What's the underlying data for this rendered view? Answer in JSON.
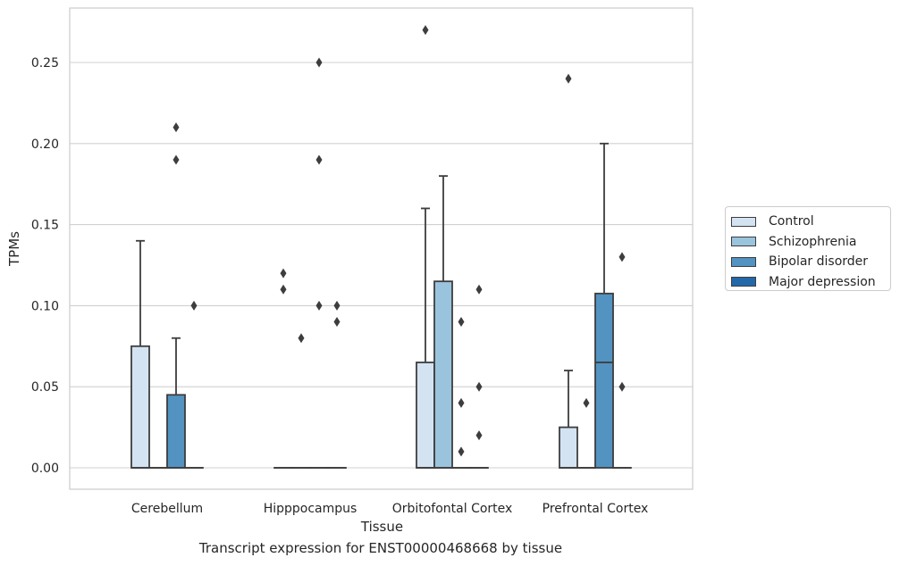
{
  "chart_data": {
    "type": "box",
    "xlabel": "Tissue",
    "ylabel": "TPMs",
    "caption": "Transcript expression for ENST00000468668 by tissue",
    "categories": [
      "Cerebellum",
      "Hipppocampus",
      "Orbitofontal Cortex",
      "Prefrontal Cortex"
    ],
    "ylim": [
      -0.0125,
      0.284
    ],
    "yticks": [
      "0.00",
      "0.05",
      "0.10",
      "0.15",
      "0.20",
      "0.25"
    ],
    "grid": "horizontal",
    "legend_position": "right",
    "series": [
      {
        "name": "Control",
        "color": "#d3e3f2",
        "boxes": [
          {
            "q1": 0,
            "median": 0,
            "q3": 0.075,
            "whisker_low": 0,
            "whisker_high": 0.14,
            "outliers": []
          },
          {
            "q1": 0,
            "median": 0,
            "q3": 0,
            "whisker_low": 0,
            "whisker_high": 0,
            "outliers": [
              0.12,
              0.11
            ]
          },
          {
            "q1": 0,
            "median": 0,
            "q3": 0.065,
            "whisker_low": 0,
            "whisker_high": 0.16,
            "outliers": [
              0.27
            ]
          },
          {
            "q1": 0,
            "median": 0,
            "q3": 0.025,
            "whisker_low": 0,
            "whisker_high": 0.06,
            "outliers": [
              0.24
            ]
          }
        ]
      },
      {
        "name": "Schizophrenia",
        "color": "#9ac4dd",
        "boxes": [
          {
            "q1": 0,
            "median": 0,
            "q3": 0,
            "whisker_low": 0,
            "whisker_high": 0,
            "outliers": []
          },
          {
            "q1": 0,
            "median": 0,
            "q3": 0,
            "whisker_low": 0,
            "whisker_high": 0,
            "outliers": [
              0.08
            ]
          },
          {
            "q1": 0,
            "median": 0,
            "q3": 0.115,
            "whisker_low": 0,
            "whisker_high": 0.18,
            "outliers": []
          },
          {
            "q1": 0,
            "median": 0,
            "q3": 0,
            "whisker_low": 0,
            "whisker_high": 0,
            "outliers": [
              0.04
            ]
          }
        ]
      },
      {
        "name": "Bipolar disorder",
        "color": "#5293c2",
        "boxes": [
          {
            "q1": 0,
            "median": 0,
            "q3": 0.045,
            "whisker_low": 0,
            "whisker_high": 0.08,
            "outliers": [
              0.21,
              0.19
            ]
          },
          {
            "q1": 0,
            "median": 0,
            "q3": 0,
            "whisker_low": 0,
            "whisker_high": 0,
            "outliers": [
              0.25,
              0.19,
              0.1
            ]
          },
          {
            "q1": 0,
            "median": 0,
            "q3": 0,
            "whisker_low": 0,
            "whisker_high": 0,
            "outliers": [
              0.09,
              0.04,
              0.01
            ]
          },
          {
            "q1": 0,
            "median": 0.065,
            "q3": 0.1075,
            "whisker_low": 0,
            "whisker_high": 0.2,
            "outliers": []
          }
        ]
      },
      {
        "name": "Major depression",
        "color": "#2369a9",
        "boxes": [
          {
            "q1": 0,
            "median": 0,
            "q3": 0,
            "whisker_low": 0,
            "whisker_high": 0,
            "outliers": [
              0.1
            ]
          },
          {
            "q1": 0,
            "median": 0,
            "q3": 0,
            "whisker_low": 0,
            "whisker_high": 0,
            "outliers": [
              0.1,
              0.09
            ]
          },
          {
            "q1": 0,
            "median": 0,
            "q3": 0,
            "whisker_low": 0,
            "whisker_high": 0,
            "outliers": [
              0.11,
              0.05,
              0.02
            ]
          },
          {
            "q1": 0,
            "median": 0,
            "q3": 0,
            "whisker_low": 0,
            "whisker_high": 0,
            "outliers": [
              0.13,
              0.05
            ]
          }
        ]
      }
    ]
  }
}
